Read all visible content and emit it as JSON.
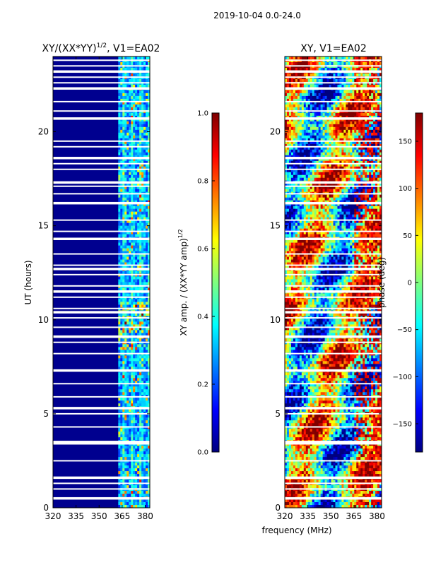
{
  "figure": {
    "suptitle": "2019-10-04 0.0-24.0",
    "xlabel_shared": "frequency (MHz)",
    "ylabel_shared": "UT (hours)"
  },
  "chart_data": [
    {
      "type": "heatmap",
      "title_main": "XY/(XX*YY)",
      "title_exp": "1/2",
      "title_suffix": ", V1=EA02",
      "xlabel": "",
      "ylabel": "UT (hours)",
      "x_ticks": [
        320,
        335,
        350,
        365,
        380
      ],
      "y_ticks": [
        0,
        5,
        10,
        15,
        20
      ],
      "xlim": [
        320,
        383
      ],
      "ylim": [
        0,
        24
      ],
      "band_start_mhz": 362,
      "colorbar": {
        "label_main": "XY amp. / (XX*YY amp)",
        "label_exp": "1/2",
        "ticks": [
          "0.0",
          "0.2",
          "0.4",
          "0.6",
          "0.8",
          "1.0"
        ],
        "range": [
          0.0,
          1.0
        ]
      }
    },
    {
      "type": "heatmap",
      "title_main": "XY, V1=EA02",
      "xlabel": "frequency (MHz)",
      "ylabel": "",
      "x_ticks": [
        320,
        335,
        350,
        365,
        380
      ],
      "y_ticks": [
        0,
        5,
        10,
        15,
        20
      ],
      "xlim": [
        320,
        383
      ],
      "ylim": [
        0,
        24
      ],
      "colorbar": {
        "label_main": "phase (deg)",
        "ticks": [
          "150",
          "100",
          "50",
          "0",
          "−50",
          "−100",
          "−150"
        ],
        "tick_values": [
          150,
          100,
          50,
          0,
          -50,
          -100,
          -150
        ],
        "range": [
          -180,
          180
        ]
      }
    }
  ],
  "gap_rows_hours": [
    0.5,
    1.0,
    1.3,
    1.6,
    2.5,
    3.4,
    3.5,
    4.3,
    5.0,
    5.3,
    5.9,
    6.6,
    7.3,
    8.2,
    8.8,
    9.1,
    9.6,
    10.1,
    10.4,
    10.6,
    11.2,
    11.5,
    11.8,
    12.4,
    12.7,
    12.9,
    13.5,
    14.3,
    14.7,
    15.3,
    16.2,
    16.7,
    17.1,
    17.3,
    18.0,
    18.3,
    18.6,
    19.2,
    19.5,
    20.7,
    21.1,
    21.6,
    22.3,
    22.6,
    22.9,
    23.2,
    23.5,
    23.8
  ]
}
